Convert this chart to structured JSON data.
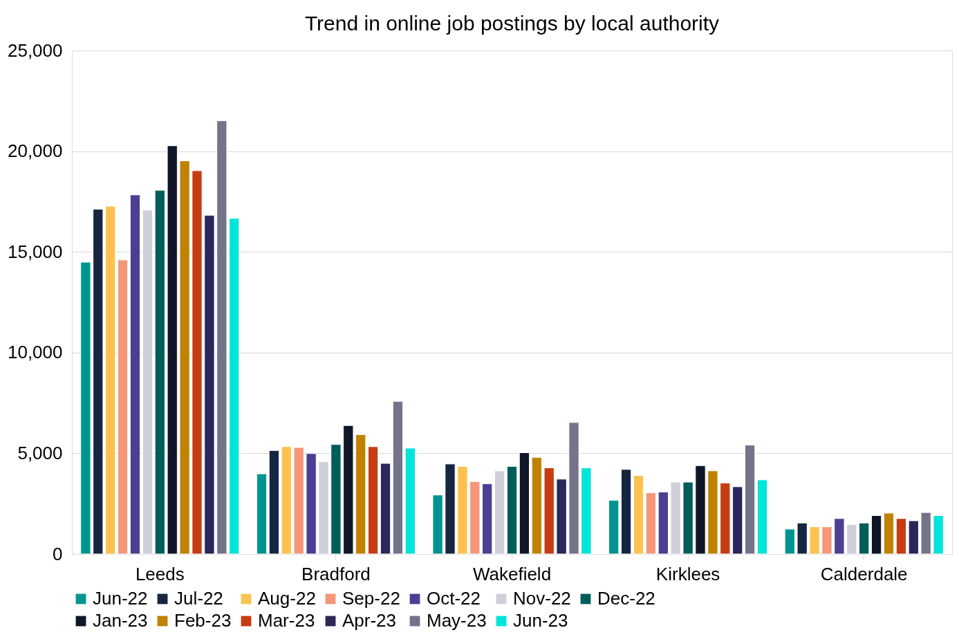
{
  "chart_data": {
    "type": "bar",
    "title": "Trend in online job postings by local authority",
    "categories": [
      "Leeds",
      "Bradford",
      "Wakefield",
      "Kirklees",
      "Calderdale"
    ],
    "series": [
      {
        "name": "Jun-22",
        "color": "#00968f",
        "values": [
          14490,
          3980,
          2930,
          2670,
          1240
        ]
      },
      {
        "name": "Jul-22",
        "color": "#172540",
        "values": [
          17120,
          5140,
          4470,
          4200,
          1540
        ]
      },
      {
        "name": "Aug-22",
        "color": "#fcc250",
        "values": [
          17270,
          5330,
          4350,
          3900,
          1350
        ]
      },
      {
        "name": "Sep-22",
        "color": "#f4967a",
        "values": [
          14600,
          5290,
          3600,
          3040,
          1350
        ]
      },
      {
        "name": "Oct-22",
        "color": "#4a3f93",
        "values": [
          17830,
          4990,
          3490,
          3080,
          1760
        ]
      },
      {
        "name": "Nov-22",
        "color": "#cfcfd9",
        "values": [
          17080,
          4580,
          4130,
          3570,
          1460
        ]
      },
      {
        "name": "Dec-22",
        "color": "#005e5a",
        "values": [
          18060,
          5440,
          4350,
          3570,
          1540
        ]
      },
      {
        "name": "Jan-23",
        "color": "#0f1628",
        "values": [
          20270,
          6380,
          5030,
          4390,
          1910
        ]
      },
      {
        "name": "Feb-23",
        "color": "#c08204",
        "values": [
          19520,
          5930,
          4800,
          4130,
          2030
        ]
      },
      {
        "name": "Mar-23",
        "color": "#c63d14",
        "values": [
          19030,
          5330,
          4280,
          3530,
          1760
        ]
      },
      {
        "name": "Apr-23",
        "color": "#2c2659",
        "values": [
          16820,
          4500,
          3720,
          3340,
          1650
        ]
      },
      {
        "name": "May-23",
        "color": "#737389",
        "values": [
          21510,
          7580,
          6530,
          5410,
          2060
        ]
      },
      {
        "name": "Jun-23",
        "color": "#00e4d9",
        "values": [
          16670,
          5260,
          4280,
          3680,
          1910
        ]
      }
    ],
    "ylim": [
      0,
      25000
    ],
    "yticks": [
      0,
      {
        "value": 5000,
        "label": "5,000"
      },
      {
        "value": 10000,
        "label": "10,000"
      },
      {
        "value": 15000,
        "label": "15,000"
      },
      {
        "value": 20000,
        "label": "20,000"
      },
      {
        "value": 25000,
        "label": "25,000"
      }
    ],
    "grid": "y",
    "legend": "bottom"
  }
}
